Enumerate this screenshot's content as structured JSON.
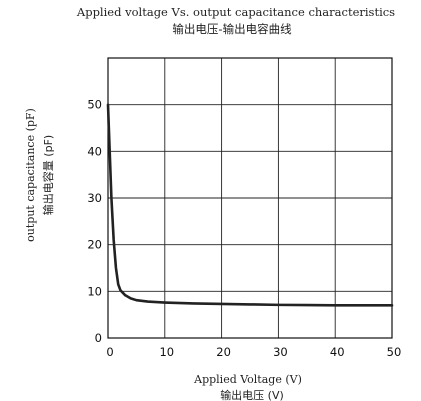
{
  "chart_data": {
    "type": "line",
    "title": "Applied voltage Vs. output capacitance characteristics",
    "subtitle": "输出电压-输出电容曲线",
    "xlabel": "Applied Voltage (V)",
    "xlabel_cn": "输出电压 (V)",
    "ylabel": "output capacitance (pF)",
    "ylabel_cn": "输出电容量 (pF)",
    "xlim": [
      0,
      50
    ],
    "ylim": [
      0,
      60
    ],
    "x_ticks": [
      0,
      10,
      20,
      30,
      40,
      50
    ],
    "y_ticks": [
      0,
      10,
      20,
      30,
      40,
      50
    ],
    "grid": true,
    "line_color": "#222222",
    "series": [
      {
        "x": [
          0,
          0.3,
          0.6,
          1.0,
          1.4,
          1.8,
          2.2,
          3,
          4,
          5,
          7,
          10,
          15,
          20,
          25,
          30,
          35,
          40,
          45,
          50
        ],
        "y": [
          50,
          40,
          30,
          21,
          15,
          11.5,
          10.2,
          9.2,
          8.5,
          8.1,
          7.8,
          7.6,
          7.4,
          7.3,
          7.2,
          7.1,
          7.05,
          7.0,
          7.0,
          7.0
        ]
      }
    ]
  }
}
